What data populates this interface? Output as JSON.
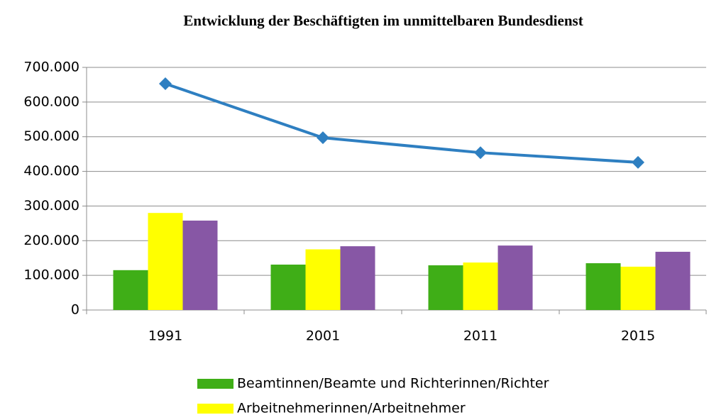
{
  "chart_data": {
    "type": "bar-line",
    "title": "Entwicklung der Beschäftigten im unmittelbaren Bundesdienst",
    "categories": [
      "1991",
      "2001",
      "2011",
      "2015"
    ],
    "series": [
      {
        "name": "Beamtinnen/Beamte und Richterinnen/Richter",
        "type": "bar",
        "color": "#3fae17",
        "values": [
          115000,
          131000,
          129000,
          135000
        ]
      },
      {
        "name": "Arbeitnehmerinnen/Arbeitnehmer",
        "type": "bar",
        "color": "#ffff00",
        "values": [
          280000,
          175000,
          137000,
          125000
        ]
      },
      {
        "type": "bar",
        "color": "#8757a5",
        "values": [
          258000,
          184000,
          186000,
          168000
        ]
      },
      {
        "type": "line",
        "color": "#2e7fc1",
        "values": [
          653000,
          497000,
          454000,
          426000
        ]
      }
    ],
    "ylim": [
      0,
      700000
    ],
    "yticks": [
      0,
      {
        "value": 100000,
        "label": "100.000"
      },
      {
        "value": 200000,
        "label": "200.000"
      },
      {
        "value": 300000,
        "label": "300.000"
      },
      {
        "value": 400000,
        "label": "400.000"
      },
      {
        "value": 500000,
        "label": "500.000"
      },
      {
        "value": 600000,
        "label": "600.000"
      },
      {
        "value": 700000,
        "label": "700.000"
      }
    ],
    "grid": true
  }
}
